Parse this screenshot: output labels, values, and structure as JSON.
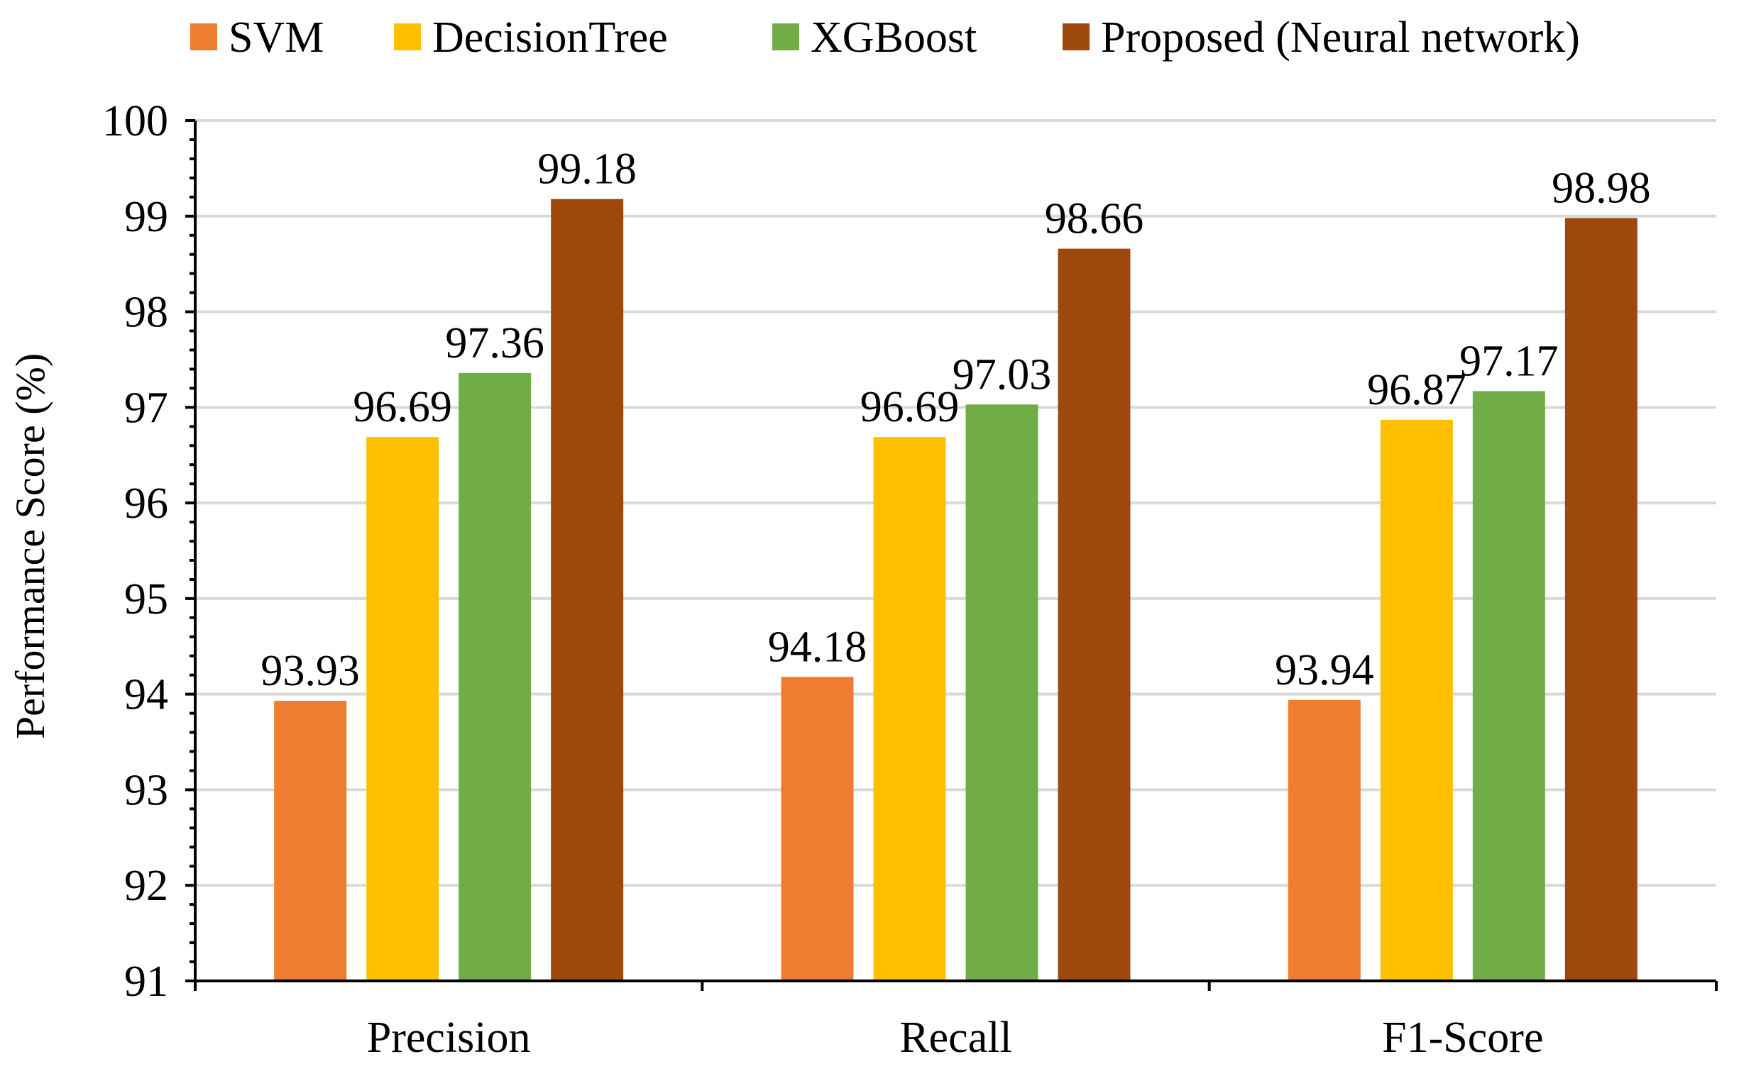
{
  "chart_data": {
    "type": "bar",
    "title": "",
    "xlabel": "",
    "ylabel": "Performance Score (%)",
    "ylim": [
      91,
      100
    ],
    "ytick_step": 1,
    "minor_ticks_per_major": 5,
    "grid": true,
    "legend_position": "top",
    "categories": [
      "Precision",
      "Recall",
      "F1-Score"
    ],
    "series": [
      {
        "name": "SVM",
        "color": "#ed7d31",
        "values": [
          93.93,
          94.18,
          93.94
        ]
      },
      {
        "name": "DecisionTree",
        "color": "#ffc000",
        "values": [
          96.69,
          96.69,
          96.87
        ]
      },
      {
        "name": "XGBoost",
        "color": "#70ad47",
        "values": [
          97.36,
          97.03,
          97.17
        ]
      },
      {
        "name": "Proposed (Neural network)",
        "color": "#9e480e",
        "values": [
          99.18,
          98.66,
          98.98
        ]
      }
    ],
    "data_labels": [
      [
        "93.93",
        "94.18",
        "93.94"
      ],
      [
        "96.69",
        "96.69",
        "96.87"
      ],
      [
        "97.36",
        "97.03",
        "97.17"
      ],
      [
        "99.18",
        "98.66",
        "98.98"
      ]
    ]
  }
}
